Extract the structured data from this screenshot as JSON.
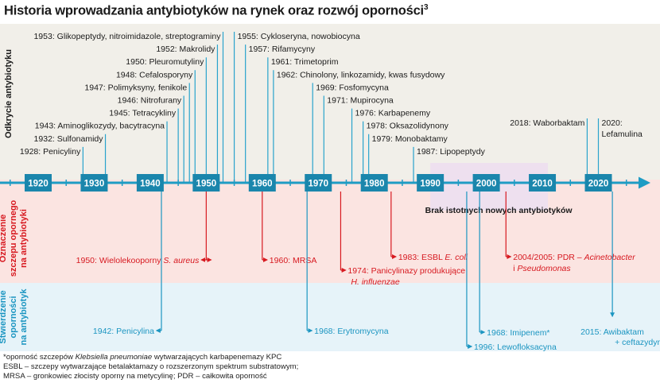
{
  "title": "Historia wprowadzania antybiotyków na rynek oraz rozwój oporności",
  "title_sup": "3",
  "colors": {
    "band_discovery": "#f1efe9",
    "band_resistance": "#fbe4e1",
    "band_confirmed": "#e6f3f9",
    "gap_band": "#eee0ef",
    "axis": "#1f9cc4",
    "year_box": "#1a86ac",
    "discovery_line": "#29a3cc",
    "resistance": "#d71920",
    "confirmed": "#1b95c1",
    "text": "#1a1a1a"
  },
  "band_labels": {
    "discovery": "Odkrycie antybiotyku",
    "resistance": [
      "Oznaczenie",
      "szczepu opornego",
      "na antybiotyki"
    ],
    "confirmed": [
      "Stwierdzenie",
      "oporności",
      "na antybiotyk"
    ]
  },
  "axis": {
    "ticks": [
      "1920",
      "1930",
      "1940",
      "1950",
      "1960",
      "1970",
      "1980",
      "1990",
      "2000",
      "2010",
      "2020"
    ]
  },
  "gap_label": "Brak istotnych nowych antybiotyków",
  "discoveries": [
    {
      "year": 1928,
      "text": "1928: Penicyliny"
    },
    {
      "year": 1932,
      "text": "1932: Sulfonamidy"
    },
    {
      "year": 1943,
      "text": "1943: Aminoglikozydy, bacytracyna"
    },
    {
      "year": 1945,
      "text": "1945: Tetracykliny"
    },
    {
      "year": 1946,
      "text": "1946: Nitrofurany"
    },
    {
      "year": 1947,
      "text": "1947: Polimyksyny, fenikole"
    },
    {
      "year": 1948,
      "text": "1948: Cefalosporyny"
    },
    {
      "year": 1950,
      "text": "1950: Pleuromutyliny"
    },
    {
      "year": 1952,
      "text": "1952: Makrolidy"
    },
    {
      "year": 1953,
      "text": "1953: Glikopeptydy, nitroimidazole, streptograminy"
    },
    {
      "year": 1955,
      "text": "1955: Cykloseryna, nowobiocyna"
    },
    {
      "year": 1957,
      "text": "1957: Rifamycyny"
    },
    {
      "year": 1961,
      "text": "1961: Trimetoprim"
    },
    {
      "year": 1962,
      "text": "1962: Chinolony, linkozamidy, kwas fusydowy"
    },
    {
      "year": 1969,
      "text": "1969: Fosfomycyna"
    },
    {
      "year": 1971,
      "text": "1971: Mupirocyna"
    },
    {
      "year": 1976,
      "text": "1976: Karbapenemy"
    },
    {
      "year": 1978,
      "text": "1978: Oksazolidynony"
    },
    {
      "year": 1979,
      "text": "1979: Monobaktamy"
    },
    {
      "year": 1987,
      "text": "1987: Lipopeptydy"
    },
    {
      "year": 2018,
      "text": "2018: Waborbaktam"
    },
    {
      "year": 2020,
      "lines": [
        "2020:",
        "Lefamulina"
      ]
    }
  ],
  "resistance": [
    {
      "year": 1950,
      "text": "1950: Wielolekooporny ",
      "italic": "S. aureus"
    },
    {
      "year": 1960,
      "text": "1960: MRSA"
    },
    {
      "year": 1974,
      "lines": [
        "1974: Panicylinazy produkujące"
      ],
      "italic_line": "H. influenzae"
    },
    {
      "year": 1983,
      "text": "1983: ESBL ",
      "italic": "E. coli"
    },
    {
      "year": 2004,
      "text": "2004/2005: PDR – ",
      "italic": "Acinetobacter",
      "line2": "i ",
      "line2_italic": "Pseudomonas"
    }
  ],
  "confirmed": [
    {
      "year": 1942,
      "text": "1942: Penicylina"
    },
    {
      "year": 1968,
      "text": "1968: Erytromycyna"
    },
    {
      "year": 1996,
      "text": "1996: Lewofloksacyna"
    },
    {
      "year": 1968,
      "label_key": "imipenem",
      "text": "1968: Imipenem*"
    },
    {
      "year": 2015,
      "lines": [
        "2015: Awibaktam",
        "+ ceftazydym"
      ]
    }
  ],
  "footnotes": {
    "line1_pre": "*oporność szczepów ",
    "line1_italic": "Klebsiella pneumoniae",
    "line1_post": " wytwarzających karbapenemazy KPC",
    "line2": "ESBL – szczepy wytwarzające betalaktamazy o rozszerzonym spektrum substratowym;",
    "line3": "MRSA – gronkowiec złocisty oporny na metycylinę; PDR – całkowita oporność"
  }
}
